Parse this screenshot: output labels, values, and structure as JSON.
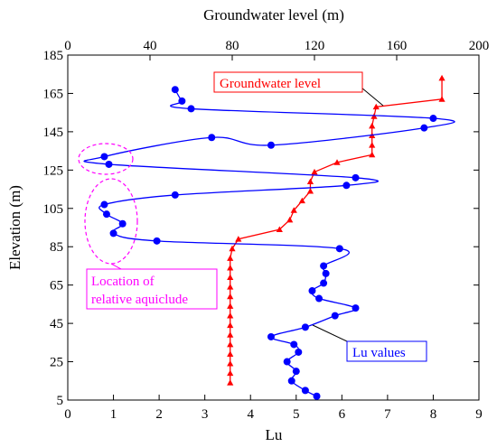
{
  "chart_data": {
    "type": "line",
    "title": "",
    "top_axis": {
      "label": "Groundwater level (m)",
      "range": [
        0,
        200
      ],
      "ticks": [
        0,
        40,
        80,
        120,
        160,
        200
      ]
    },
    "bottom_axis": {
      "label": "Lu",
      "range": [
        0,
        9
      ],
      "ticks": [
        0,
        1,
        2,
        3,
        4,
        5,
        6,
        7,
        8,
        9
      ]
    },
    "left_axis": {
      "label": "Elevation (m)",
      "range": [
        5,
        185
      ],
      "ticks": [
        5,
        25,
        45,
        65,
        85,
        105,
        125,
        145,
        165,
        185
      ]
    },
    "grid": false,
    "series": [
      {
        "name": "Groundwater level",
        "axis": "top",
        "color": "#ff0000",
        "marker": "triangle",
        "points": [
          [
            182,
            173
          ],
          [
            182,
            162
          ],
          [
            150,
            158
          ],
          [
            149,
            153
          ],
          [
            148,
            148
          ],
          [
            148,
            143
          ],
          [
            148,
            138
          ],
          [
            148,
            133
          ],
          [
            131,
            129
          ],
          [
            120,
            124
          ],
          [
            118,
            119
          ],
          [
            118,
            114
          ],
          [
            114,
            109
          ],
          [
            110,
            104
          ],
          [
            108,
            99
          ],
          [
            103,
            94
          ],
          [
            83,
            89
          ],
          [
            80,
            84
          ],
          [
            79,
            79
          ],
          [
            79,
            74
          ],
          [
            79,
            69
          ],
          [
            79,
            64
          ],
          [
            79,
            59
          ],
          [
            79,
            54
          ],
          [
            79,
            49
          ],
          [
            79,
            44
          ],
          [
            79,
            39
          ],
          [
            79,
            34
          ],
          [
            79,
            29
          ],
          [
            79,
            24
          ],
          [
            79,
            19
          ],
          [
            79,
            14
          ]
        ]
      },
      {
        "name": "Lu values",
        "axis": "bottom",
        "color": "#0000ff",
        "marker": "circle",
        "points": [
          [
            2.35,
            167
          ],
          [
            2.5,
            161
          ],
          [
            2.7,
            157
          ],
          [
            8.0,
            152
          ],
          [
            7.8,
            147
          ],
          [
            4.45,
            138
          ],
          [
            3.15,
            142
          ],
          [
            0.8,
            132
          ],
          [
            0.9,
            128
          ],
          [
            6.3,
            121
          ],
          [
            6.1,
            117
          ],
          [
            2.35,
            112
          ],
          [
            0.8,
            107
          ],
          [
            0.85,
            102
          ],
          [
            1.2,
            97
          ],
          [
            1.0,
            92
          ],
          [
            1.95,
            88
          ],
          [
            5.95,
            84
          ],
          [
            5.6,
            75
          ],
          [
            5.65,
            71
          ],
          [
            5.6,
            66
          ],
          [
            5.35,
            62
          ],
          [
            5.5,
            58
          ],
          [
            6.3,
            53
          ],
          [
            5.85,
            49
          ],
          [
            5.2,
            43
          ],
          [
            4.45,
            38
          ],
          [
            4.95,
            34
          ],
          [
            5.05,
            30
          ],
          [
            4.8,
            25
          ],
          [
            5.0,
            20
          ],
          [
            4.9,
            15
          ],
          [
            5.2,
            10
          ],
          [
            5.45,
            7
          ]
        ]
      }
    ],
    "annotations": {
      "groundwater_label": "Groundwater level",
      "lu_label": "Lu values",
      "aquiclude_label_line1": "Location of",
      "aquiclude_label_line2": "relative aquiclude"
    }
  }
}
